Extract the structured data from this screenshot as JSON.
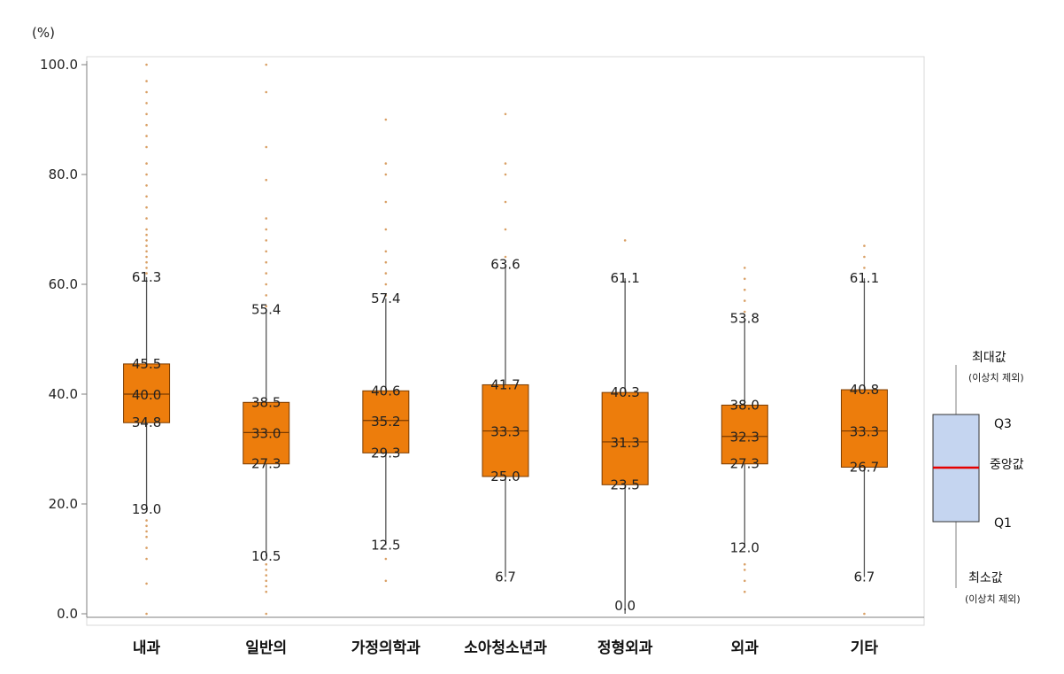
{
  "chart_data": {
    "type": "boxplot",
    "ylabel": "(%)",
    "ylim": [
      0,
      100
    ],
    "yticks": [
      "0.0",
      "20.0",
      "40.0",
      "60.0",
      "80.0",
      "100.0"
    ],
    "grid": false,
    "categories": [
      "내과",
      "일반의",
      "가정의학과",
      "소아청소년과",
      "정형외과",
      "외과",
      "기타"
    ],
    "boxes": [
      {
        "category": "내과",
        "min": 19.0,
        "q1": 34.8,
        "median": 40.0,
        "q3": 45.5,
        "max": 61.3,
        "labels": {
          "min": "19.0",
          "q1": "34.8",
          "median": "40.0",
          "q3": "45.5",
          "max": "61.3"
        },
        "outliers": [
          0,
          5.5,
          10,
          12,
          14,
          15,
          16,
          17,
          62,
          63,
          64,
          65,
          66,
          67,
          68,
          69,
          70,
          72,
          74,
          76,
          78,
          80,
          82,
          85,
          87,
          89,
          91,
          93,
          95,
          97,
          100
        ]
      },
      {
        "category": "일반의",
        "min": 10.5,
        "q1": 27.3,
        "median": 33.0,
        "q3": 38.5,
        "max": 55.4,
        "labels": {
          "min": "10.5",
          "q1": "27.3",
          "median": "33.0",
          "q3": "38.5",
          "max": "55.4"
        },
        "outliers": [
          0,
          4,
          5,
          6,
          7,
          8,
          9,
          56,
          58,
          60,
          62,
          64,
          66,
          68,
          70,
          72,
          79,
          85,
          95,
          100
        ]
      },
      {
        "category": "가정의학과",
        "min": 12.5,
        "q1": 29.3,
        "median": 35.2,
        "q3": 40.6,
        "max": 57.4,
        "labels": {
          "min": "12.5",
          "q1": "29.3",
          "median": "35.2",
          "q3": "40.6",
          "max": "57.4"
        },
        "outliers": [
          6,
          10,
          58,
          60,
          62,
          64,
          66,
          70,
          75,
          80,
          82,
          90
        ]
      },
      {
        "category": "소아청소년과",
        "min": 6.7,
        "q1": 25.0,
        "median": 33.3,
        "q3": 41.7,
        "max": 63.6,
        "labels": {
          "min": "6.7",
          "q1": "25.0",
          "median": "33.3",
          "q3": "41.7",
          "max": "63.6"
        },
        "outliers": [
          65,
          70,
          75,
          80,
          82,
          91
        ]
      },
      {
        "category": "정형외과",
        "min": 0.0,
        "q1": 23.5,
        "median": 31.3,
        "q3": 40.3,
        "max": 61.1,
        "labels": {
          "min": "0.0",
          "q1": "23.5",
          "median": "31.3",
          "q3": "40.3",
          "max": "61.1"
        },
        "outliers": [
          68
        ]
      },
      {
        "category": "외과",
        "min": 12.0,
        "q1": 27.3,
        "median": 32.3,
        "q3": 38.0,
        "max": 53.8,
        "labels": {
          "min": "12.0",
          "q1": "27.3",
          "median": "32.3",
          "q3": "38.0",
          "max": "53.8"
        },
        "outliers": [
          4,
          6,
          8,
          9,
          55,
          57,
          59,
          61,
          63
        ]
      },
      {
        "category": "기타",
        "min": 6.7,
        "q1": 26.7,
        "median": 33.3,
        "q3": 40.8,
        "max": 61.1,
        "labels": {
          "min": "6.7",
          "q1": "26.7",
          "median": "33.3",
          "q3": "40.8",
          "max": "61.1"
        },
        "outliers": [
          0,
          63,
          65,
          67
        ]
      }
    ],
    "legend": {
      "position": "right",
      "max_label": "최대값",
      "max_note": "(이상치 제외)",
      "q3_label": "Q3",
      "median_label": "중앙값",
      "q1_label": "Q1",
      "min_label": "최소값",
      "min_note": "(이상치 제외)"
    },
    "colors": {
      "box_fill": "#ed7d0c",
      "box_stroke": "#7a3b00",
      "whisker": "#555555",
      "outlier": "#d9a066",
      "legend_box_fill": "#c5d5f0",
      "legend_median": "#e60000"
    }
  }
}
